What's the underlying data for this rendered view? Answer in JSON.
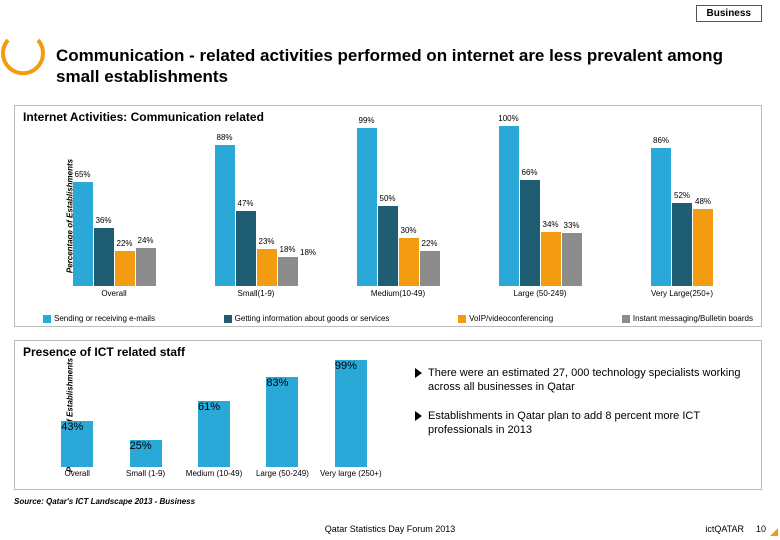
{
  "tag_label": "Business",
  "title": "Communication - related activities performed on internet are less prevalent among small establishments",
  "chart1": {
    "title": "Internet Activities: Communication related",
    "ylabel": "Percentage of Establishments",
    "ymax": 100,
    "categories": [
      "Overall",
      "Small(1-9)",
      "Medium(10-49)",
      "Large (50-249)",
      "Very Large(250+)"
    ],
    "series": [
      {
        "name": "Sending or receiving e-mails",
        "color": "#2aa9d9",
        "values": [
          65,
          88,
          99,
          100,
          86
        ]
      },
      {
        "name": "Getting information about goods or services",
        "color": "#1f5d73",
        "values": [
          36,
          47,
          50,
          66,
          52
        ]
      },
      {
        "name": "VoIP/videoconferencing",
        "color": "#f39c12",
        "values": [
          22,
          23,
          30,
          34,
          48
        ]
      },
      {
        "name": "Instant messaging/Bulletin boards",
        "color": "#8c8c8c",
        "values": [
          24,
          18,
          22,
          33,
          null
        ]
      }
    ],
    "extra_label": "18%"
  },
  "chart2": {
    "title": "Presence of ICT related staff",
    "ylabel": "Percentage of Establishments",
    "ymax": 100,
    "bar_color": "#2aa9d9",
    "categories": [
      "Overall",
      "Small (1-9)",
      "Medium (10-49)",
      "Large (50-249)",
      "Very large (250+)"
    ],
    "values": [
      43,
      25,
      61,
      83,
      99
    ]
  },
  "bullets": [
    "There were an estimated 27, 000 technology specialists working across all businesses in Qatar",
    "Establishments in Qatar plan to add 8 percent more ICT professionals in 2013"
  ],
  "source": "Source: Qatar's ICT Landscape 2013 - Business",
  "footer": "Qatar Statistics Day Forum 2013",
  "brand": "ictQATAR",
  "page": "10",
  "logo_stroke": "#f39c12"
}
